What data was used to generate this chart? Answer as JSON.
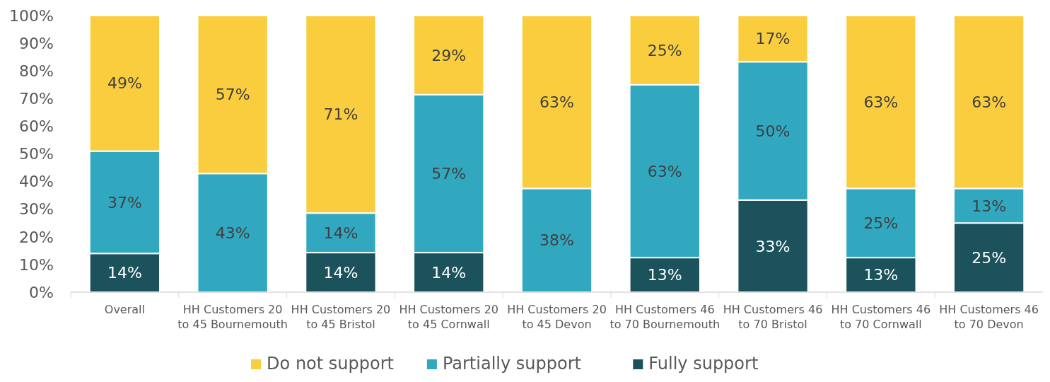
{
  "chart_data": {
    "type": "bar",
    "stacked": true,
    "categories": [
      "Overall",
      "HH Customers 20 to 45 Bournemouth",
      "HH Customers 20 to 45 Bristol",
      "HH Customers 20 to 45 Cornwall",
      "HH Customers 20 to 45 Devon",
      "HH Customers 46 to 70 Bournemouth",
      "HH Customers 46 to 70 Bristol",
      "HH Customers 46 to 70 Cornwall",
      "HH Customers 46 to 70 Devon"
    ],
    "series": [
      {
        "name": "Fully support",
        "color": "#1b525c",
        "values": [
          14,
          0,
          14.3,
          14.3,
          0,
          12.5,
          33.3,
          12.5,
          25
        ],
        "value_labels": [
          "14%",
          null,
          "14%",
          "14%",
          null,
          "13%",
          "33%",
          "13%",
          "25%"
        ]
      },
      {
        "name": "Partially support",
        "color": "#31a8c0",
        "values": [
          37,
          42.9,
          14.3,
          57.1,
          37.5,
          62.5,
          50,
          25,
          12.5
        ],
        "value_labels": [
          "37%",
          "43%",
          "14%",
          "57%",
          "38%",
          "63%",
          "50%",
          "25%",
          "13%"
        ]
      },
      {
        "name": "Do not support",
        "color": "#f9cd3e",
        "values": [
          49,
          57.1,
          71.4,
          28.6,
          62.5,
          25,
          16.7,
          62.5,
          62.5
        ],
        "value_labels": [
          "49%",
          "57%",
          "71%",
          "29%",
          "63%",
          "25%",
          "17%",
          "63%",
          "63%"
        ]
      }
    ],
    "ylim": [
      0,
      100
    ],
    "yticks": [
      {
        "value": 0,
        "label": "0%"
      },
      {
        "value": 10,
        "label": "10%"
      },
      {
        "value": 20,
        "label": "20%"
      },
      {
        "value": 30,
        "label": "30%"
      },
      {
        "value": 40,
        "label": "40%"
      },
      {
        "value": 50,
        "label": "50%"
      },
      {
        "value": 60,
        "label": "60%"
      },
      {
        "value": 70,
        "label": "70%"
      },
      {
        "value": 80,
        "label": "80%"
      },
      {
        "value": 90,
        "label": "90%"
      },
      {
        "value": 100,
        "label": "100%"
      }
    ],
    "legend": "bottom"
  }
}
